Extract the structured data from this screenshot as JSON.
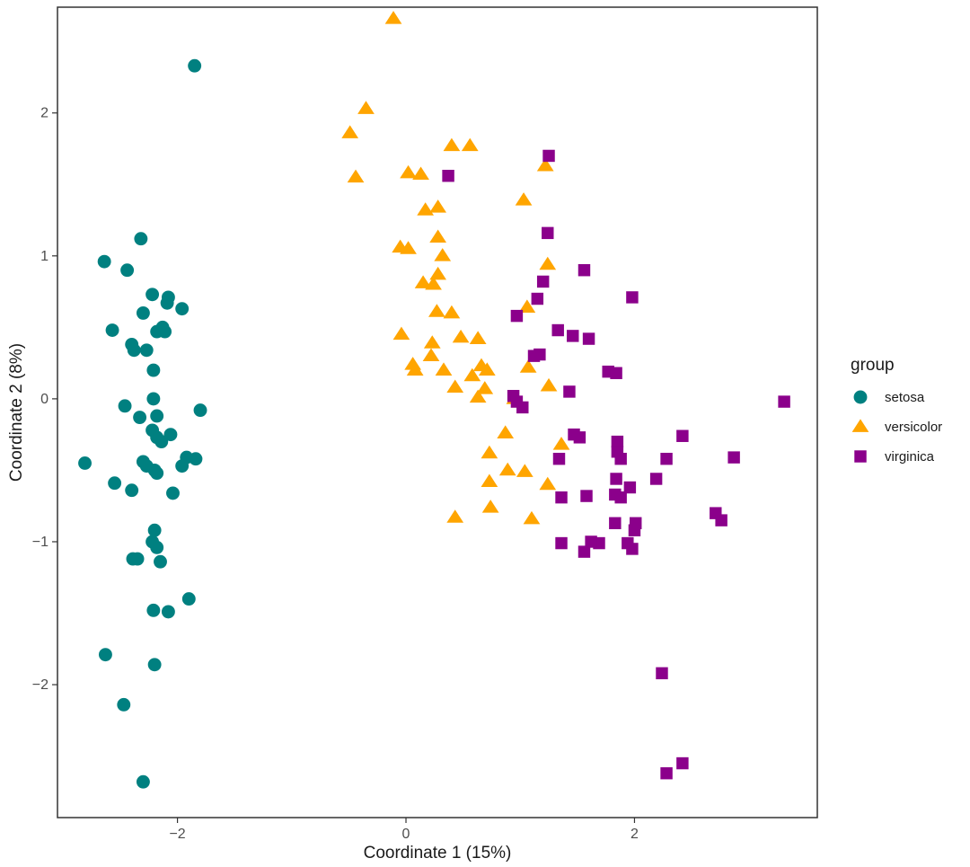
{
  "chart_data": {
    "type": "scatter",
    "xlabel": "Coordinate 1 (15%)",
    "ylabel": "Coordinate 2 (8%)",
    "xlim": [
      -3.05,
      3.6
    ],
    "ylim": [
      -2.93,
      2.74
    ],
    "x_ticks": [
      -2,
      0,
      2
    ],
    "y_ticks": [
      -2,
      -1,
      0,
      1,
      2
    ],
    "x_tick_labels": [
      "−2",
      "0",
      "2"
    ],
    "y_tick_labels": [
      "−2",
      "−1",
      "0",
      "1",
      "2"
    ],
    "grid": false,
    "legend_title": "group",
    "legend_position": "right",
    "series": [
      {
        "name": "setosa",
        "marker": "circle",
        "color": "#008080",
        "points": [
          [
            -1.85,
            2.33
          ],
          [
            -2.32,
            1.12
          ],
          [
            -2.64,
            0.96
          ],
          [
            -2.44,
            0.9
          ],
          [
            -2.22,
            0.73
          ],
          [
            -2.08,
            0.71
          ],
          [
            -2.09,
            0.67
          ],
          [
            -1.96,
            0.63
          ],
          [
            -2.3,
            0.6
          ],
          [
            -2.57,
            0.48
          ],
          [
            -2.13,
            0.5
          ],
          [
            -2.18,
            0.47
          ],
          [
            -2.11,
            0.47
          ],
          [
            -2.4,
            0.38
          ],
          [
            -2.38,
            0.34
          ],
          [
            -2.27,
            0.34
          ],
          [
            -2.21,
            0.2
          ],
          [
            -2.21,
            0.0
          ],
          [
            -2.46,
            -0.05
          ],
          [
            -1.8,
            -0.08
          ],
          [
            -2.33,
            -0.13
          ],
          [
            -2.18,
            -0.12
          ],
          [
            -2.22,
            -0.22
          ],
          [
            -2.06,
            -0.25
          ],
          [
            -2.18,
            -0.27
          ],
          [
            -2.14,
            -0.3
          ],
          [
            -1.92,
            -0.41
          ],
          [
            -1.84,
            -0.42
          ],
          [
            -2.3,
            -0.44
          ],
          [
            -1.96,
            -0.47
          ],
          [
            -2.27,
            -0.47
          ],
          [
            -2.2,
            -0.5
          ],
          [
            -2.81,
            -0.45
          ],
          [
            -2.18,
            -0.52
          ],
          [
            -2.55,
            -0.59
          ],
          [
            -2.4,
            -0.64
          ],
          [
            -2.04,
            -0.66
          ],
          [
            -2.2,
            -0.92
          ],
          [
            -2.22,
            -1.0
          ],
          [
            -2.18,
            -1.04
          ],
          [
            -2.39,
            -1.12
          ],
          [
            -2.35,
            -1.12
          ],
          [
            -2.15,
            -1.14
          ],
          [
            -1.9,
            -1.4
          ],
          [
            -2.21,
            -1.48
          ],
          [
            -2.08,
            -1.49
          ],
          [
            -2.63,
            -1.79
          ],
          [
            -2.2,
            -1.86
          ],
          [
            -2.47,
            -2.14
          ],
          [
            -2.3,
            -2.68
          ]
        ]
      },
      {
        "name": "versicolor",
        "marker": "triangle",
        "color": "#FFA500",
        "points": [
          [
            -0.11,
            2.66
          ],
          [
            -0.35,
            2.03
          ],
          [
            -0.49,
            1.86
          ],
          [
            -0.44,
            1.55
          ],
          [
            0.4,
            1.77
          ],
          [
            0.56,
            1.77
          ],
          [
            0.02,
            1.58
          ],
          [
            0.13,
            1.57
          ],
          [
            1.22,
            1.63
          ],
          [
            0.17,
            1.32
          ],
          [
            0.28,
            1.34
          ],
          [
            1.03,
            1.39
          ],
          [
            -0.05,
            1.06
          ],
          [
            0.02,
            1.05
          ],
          [
            0.28,
            1.13
          ],
          [
            0.32,
            1.0
          ],
          [
            1.24,
            0.94
          ],
          [
            0.28,
            0.87
          ],
          [
            0.15,
            0.81
          ],
          [
            0.24,
            0.8
          ],
          [
            0.27,
            0.61
          ],
          [
            0.4,
            0.6
          ],
          [
            -0.04,
            0.45
          ],
          [
            1.06,
            0.64
          ],
          [
            0.48,
            0.43
          ],
          [
            0.63,
            0.42
          ],
          [
            0.23,
            0.39
          ],
          [
            0.22,
            0.3
          ],
          [
            0.06,
            0.24
          ],
          [
            0.08,
            0.2
          ],
          [
            0.33,
            0.2
          ],
          [
            0.66,
            0.23
          ],
          [
            0.71,
            0.2
          ],
          [
            0.58,
            0.16
          ],
          [
            0.43,
            0.08
          ],
          [
            0.69,
            0.07
          ],
          [
            0.63,
            0.01
          ],
          [
            1.07,
            0.22
          ],
          [
            1.25,
            0.09
          ],
          [
            0.87,
            -0.24
          ],
          [
            1.36,
            -0.32
          ],
          [
            0.73,
            -0.38
          ],
          [
            0.89,
            -0.5
          ],
          [
            1.04,
            -0.51
          ],
          [
            0.73,
            -0.58
          ],
          [
            1.24,
            -0.6
          ],
          [
            0.43,
            -0.83
          ],
          [
            0.74,
            -0.76
          ],
          [
            1.1,
            -0.84
          ],
          [
            0.95,
            0.0
          ]
        ]
      },
      {
        "name": "virginica",
        "marker": "square",
        "color": "#8B008B",
        "points": [
          [
            1.25,
            1.7
          ],
          [
            0.37,
            1.56
          ],
          [
            1.24,
            1.16
          ],
          [
            1.56,
            0.9
          ],
          [
            1.2,
            0.82
          ],
          [
            1.15,
            0.7
          ],
          [
            1.98,
            0.71
          ],
          [
            0.97,
            0.58
          ],
          [
            1.33,
            0.48
          ],
          [
            1.46,
            0.44
          ],
          [
            1.6,
            0.42
          ],
          [
            1.17,
            0.31
          ],
          [
            1.12,
            0.3
          ],
          [
            1.77,
            0.19
          ],
          [
            1.84,
            0.18
          ],
          [
            1.43,
            0.05
          ],
          [
            0.94,
            0.02
          ],
          [
            0.97,
            -0.02
          ],
          [
            1.02,
            -0.06
          ],
          [
            3.31,
            -0.02
          ],
          [
            1.47,
            -0.25
          ],
          [
            1.52,
            -0.27
          ],
          [
            1.85,
            -0.3
          ],
          [
            2.42,
            -0.26
          ],
          [
            1.85,
            -0.37
          ],
          [
            1.88,
            -0.42
          ],
          [
            1.34,
            -0.42
          ],
          [
            2.28,
            -0.42
          ],
          [
            2.87,
            -0.41
          ],
          [
            1.84,
            -0.56
          ],
          [
            2.19,
            -0.56
          ],
          [
            1.96,
            -0.62
          ],
          [
            1.36,
            -0.69
          ],
          [
            1.58,
            -0.68
          ],
          [
            1.83,
            -0.67
          ],
          [
            1.88,
            -0.69
          ],
          [
            2.71,
            -0.8
          ],
          [
            2.76,
            -0.85
          ],
          [
            1.83,
            -0.87
          ],
          [
            2.01,
            -0.87
          ],
          [
            2.0,
            -0.92
          ],
          [
            1.36,
            -1.01
          ],
          [
            1.69,
            -1.01
          ],
          [
            1.94,
            -1.01
          ],
          [
            1.98,
            -1.05
          ],
          [
            1.56,
            -1.07
          ],
          [
            2.24,
            -1.92
          ],
          [
            2.42,
            -2.55
          ],
          [
            2.28,
            -2.62
          ],
          [
            1.62,
            -1.0
          ]
        ]
      }
    ]
  }
}
